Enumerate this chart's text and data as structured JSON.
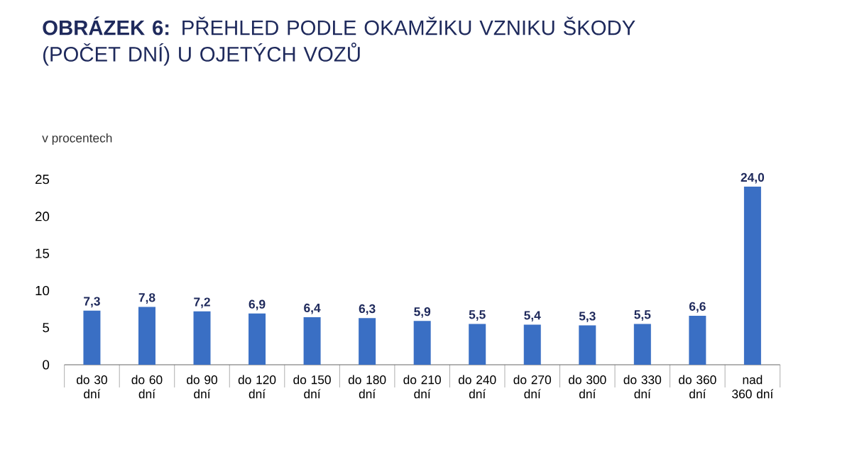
{
  "chart_data": {
    "type": "bar",
    "title": "**OBRÁZEK 6:** PŘEHLED PODLE OKAMŽIKU VZNIKU ŠKODY (POČET DNÍ) U OJETÝCH VOZŮ",
    "ylabel": "v procentech",
    "categories": [
      "do 30 dní",
      "do 60 dní",
      "do 90 dní",
      "do 120 dní",
      "do 150 dní",
      "do 180 dní",
      "do 210 dní",
      "do 240 dní",
      "do 270 dní",
      "do 300 dní",
      "do 330 dní",
      "do 360 dní",
      "nad 360 dní"
    ],
    "values": [
      7.3,
      7.8,
      7.2,
      6.9,
      6.4,
      6.3,
      5.9,
      5.5,
      5.4,
      5.3,
      5.5,
      6.6,
      24.0
    ],
    "value_labels": [
      "7,3",
      "7,8",
      "7,2",
      "6,9",
      "6,4",
      "6,3",
      "5,9",
      "5,5",
      "5,4",
      "5,3",
      "5,5",
      "6,6",
      "24,0"
    ],
    "color": "#3a6fc4",
    "ylim": [
      0,
      25
    ],
    "yticks": [
      0,
      5,
      10,
      15,
      20,
      25
    ]
  }
}
